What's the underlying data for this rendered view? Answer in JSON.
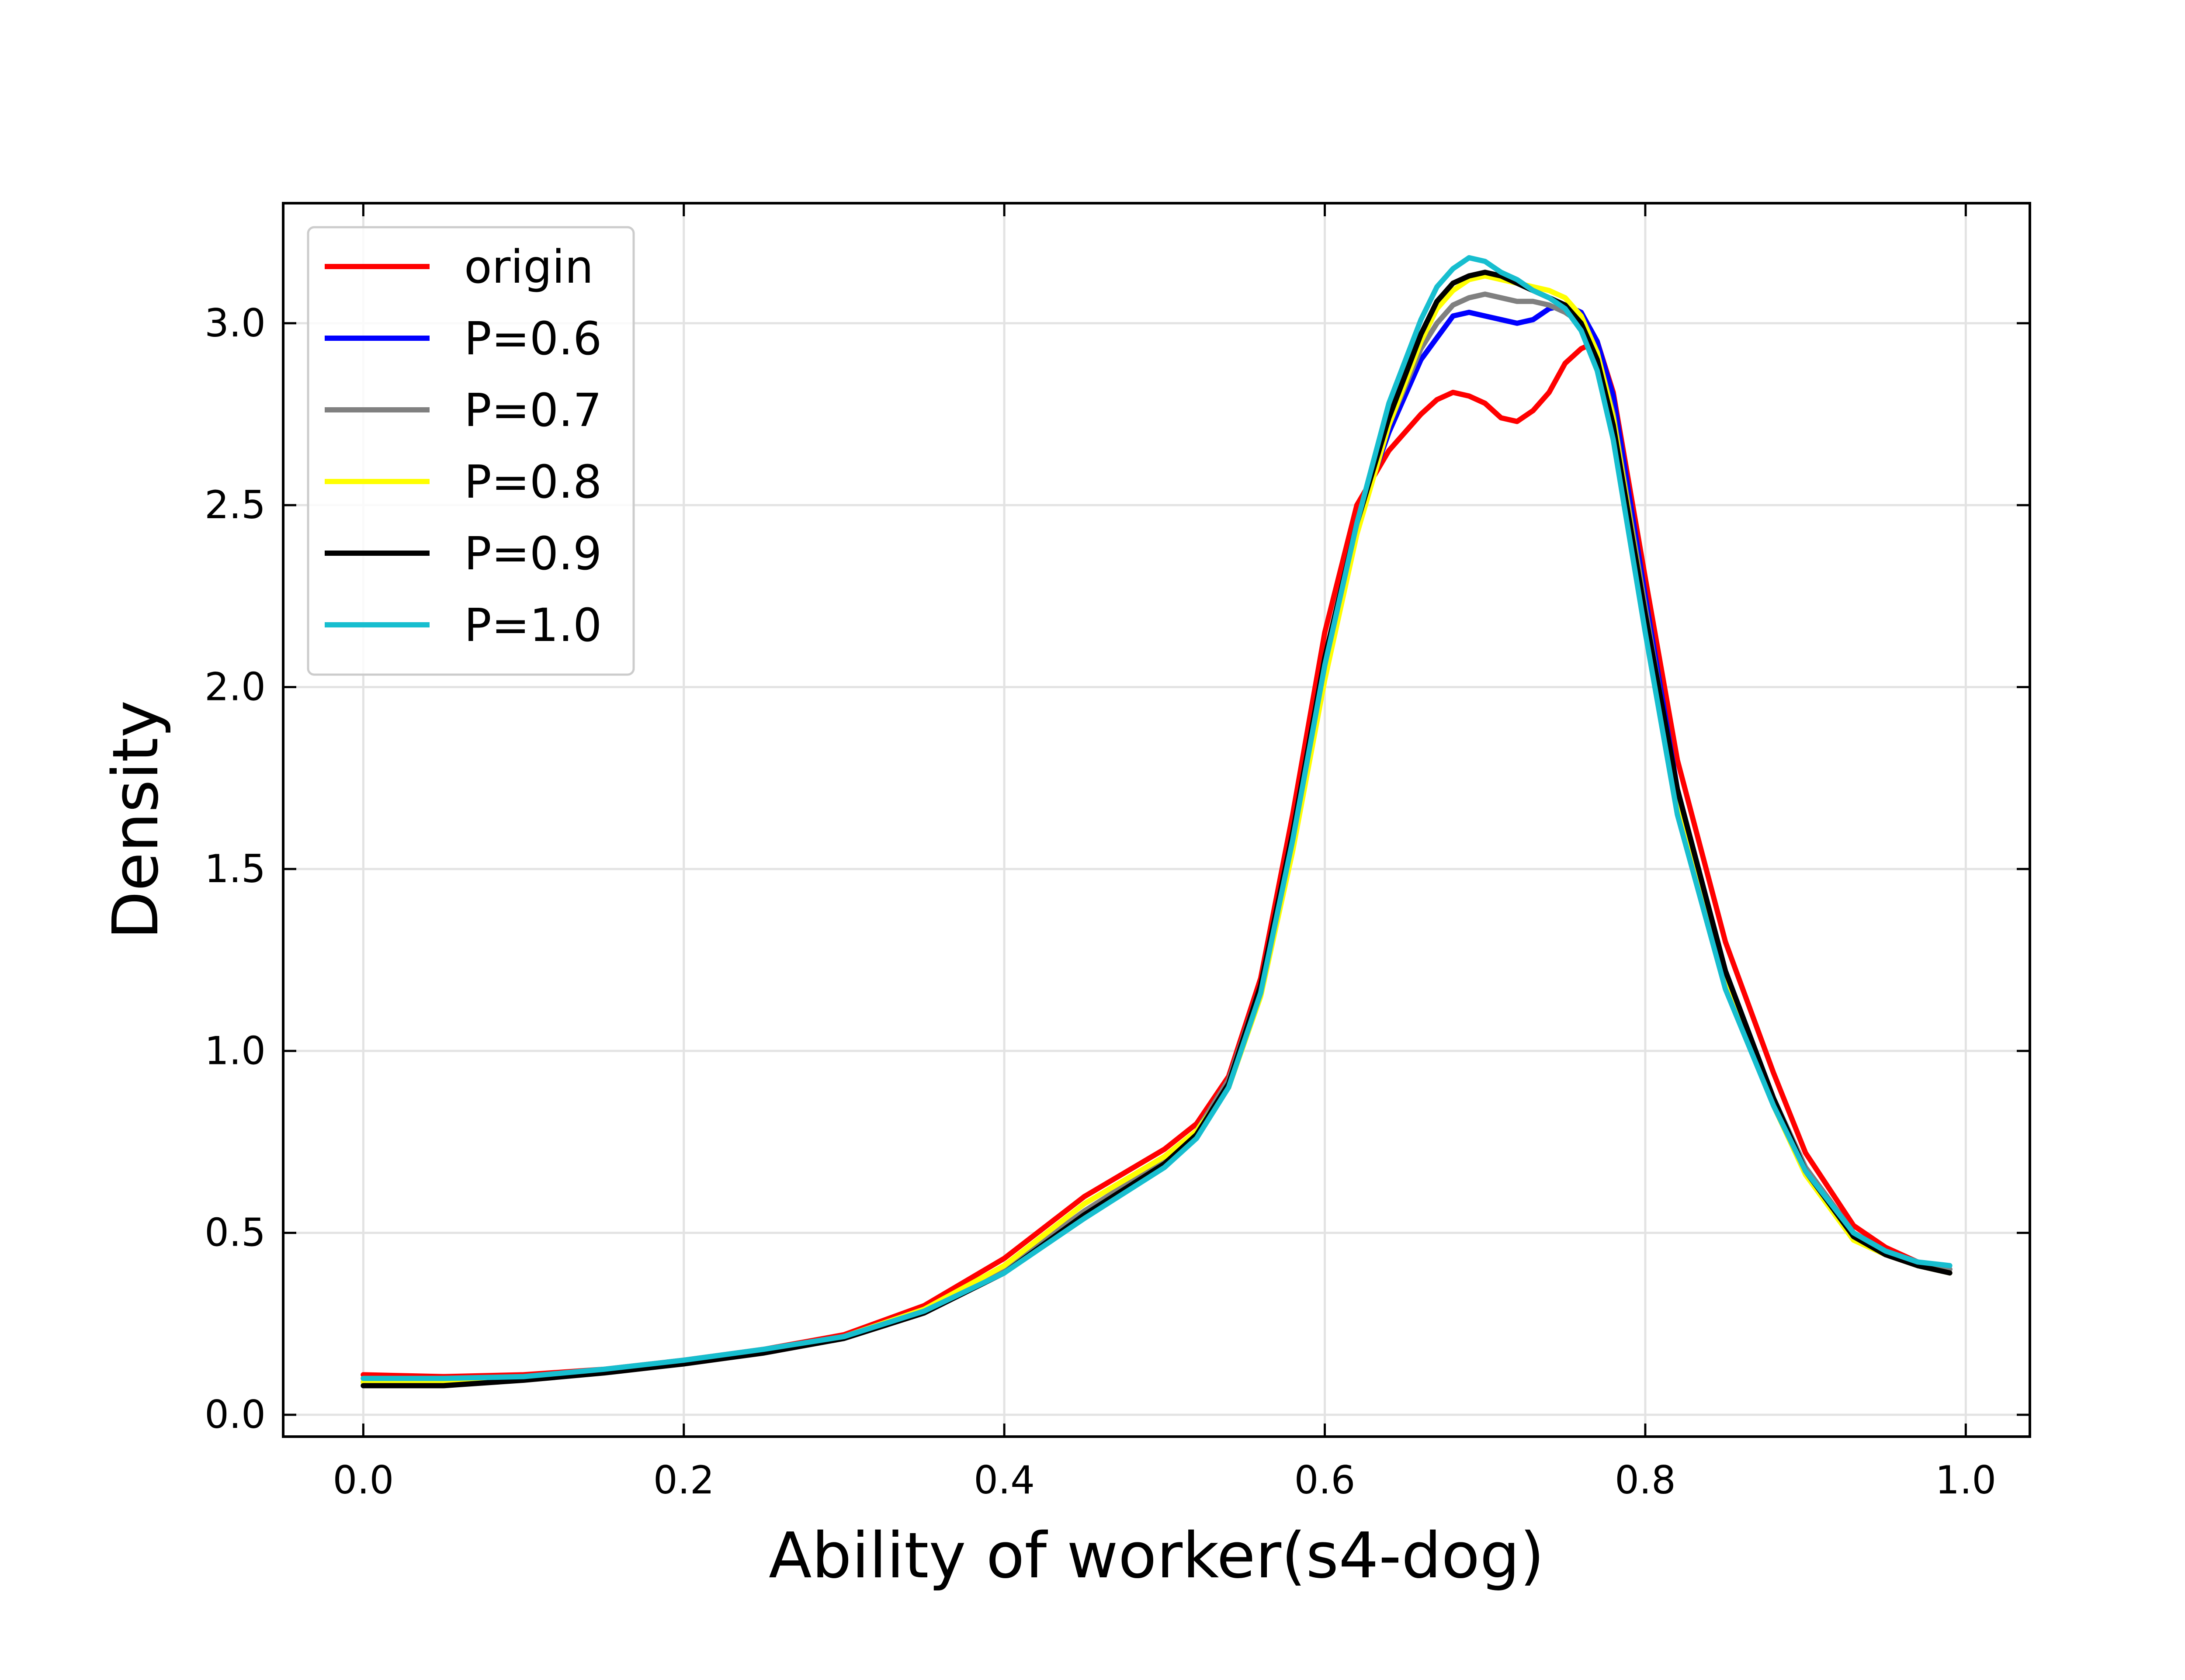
{
  "chart_data": {
    "type": "line",
    "title": "",
    "xlabel": "Ability of worker(s4-dog)",
    "ylabel": "Density",
    "xlim": [
      -0.05,
      1.04
    ],
    "ylim": [
      -0.06,
      3.33
    ],
    "xticks": [
      0.0,
      0.2,
      0.4,
      0.6,
      0.8,
      1.0
    ],
    "xtick_labels": [
      "0.0",
      "0.2",
      "0.4",
      "0.6",
      "0.8",
      "1.0"
    ],
    "yticks": [
      0.0,
      0.5,
      1.0,
      1.5,
      2.0,
      2.5,
      3.0
    ],
    "ytick_labels": [
      "0.0",
      "0.5",
      "1.0",
      "1.5",
      "2.0",
      "2.5",
      "3.0"
    ],
    "grid": true,
    "legend_position": "upper-left",
    "x": [
      0.0,
      0.05,
      0.1,
      0.15,
      0.2,
      0.25,
      0.3,
      0.35,
      0.4,
      0.45,
      0.5,
      0.52,
      0.54,
      0.56,
      0.58,
      0.6,
      0.62,
      0.64,
      0.66,
      0.67,
      0.68,
      0.69,
      0.7,
      0.71,
      0.72,
      0.73,
      0.74,
      0.75,
      0.76,
      0.77,
      0.78,
      0.8,
      0.82,
      0.85,
      0.88,
      0.9,
      0.93,
      0.95,
      0.97,
      0.99
    ],
    "series": [
      {
        "name": "origin",
        "color": "#ff0000",
        "values": [
          0.11,
          0.105,
          0.11,
          0.125,
          0.15,
          0.18,
          0.22,
          0.3,
          0.43,
          0.6,
          0.73,
          0.8,
          0.93,
          1.2,
          1.65,
          2.15,
          2.5,
          2.65,
          2.75,
          2.79,
          2.81,
          2.8,
          2.78,
          2.74,
          2.73,
          2.76,
          2.81,
          2.89,
          2.93,
          2.95,
          2.81,
          2.3,
          1.8,
          1.3,
          0.94,
          0.72,
          0.52,
          0.46,
          0.42,
          0.4
        ]
      },
      {
        "name": "P=0.6",
        "color": "#0000ff",
        "values": [
          0.09,
          0.09,
          0.1,
          0.12,
          0.145,
          0.175,
          0.215,
          0.29,
          0.4,
          0.56,
          0.7,
          0.78,
          0.92,
          1.18,
          1.6,
          2.08,
          2.45,
          2.7,
          2.9,
          2.96,
          3.02,
          3.03,
          3.02,
          3.01,
          3.0,
          3.01,
          3.04,
          3.05,
          3.03,
          2.95,
          2.8,
          2.25,
          1.72,
          1.22,
          0.87,
          0.68,
          0.5,
          0.45,
          0.42,
          0.4
        ]
      },
      {
        "name": "P=0.7",
        "color": "#808080",
        "values": [
          0.09,
          0.09,
          0.1,
          0.12,
          0.145,
          0.175,
          0.215,
          0.29,
          0.4,
          0.56,
          0.7,
          0.78,
          0.92,
          1.18,
          1.6,
          2.08,
          2.45,
          2.72,
          2.93,
          3.0,
          3.05,
          3.07,
          3.08,
          3.07,
          3.06,
          3.06,
          3.05,
          3.03,
          3.0,
          2.92,
          2.75,
          2.22,
          1.7,
          1.21,
          0.87,
          0.68,
          0.5,
          0.45,
          0.42,
          0.4
        ]
      },
      {
        "name": "P=0.8",
        "color": "#ffff00",
        "values": [
          0.09,
          0.09,
          0.1,
          0.12,
          0.145,
          0.175,
          0.215,
          0.29,
          0.41,
          0.58,
          0.71,
          0.78,
          0.9,
          1.15,
          1.55,
          2.02,
          2.42,
          2.72,
          2.95,
          3.04,
          3.09,
          3.12,
          3.13,
          3.12,
          3.11,
          3.1,
          3.09,
          3.07,
          3.02,
          2.92,
          2.74,
          2.2,
          1.68,
          1.19,
          0.85,
          0.66,
          0.48,
          0.44,
          0.41,
          0.39
        ]
      },
      {
        "name": "P=0.9",
        "color": "#000000",
        "values": [
          0.08,
          0.08,
          0.095,
          0.115,
          0.14,
          0.17,
          0.21,
          0.28,
          0.39,
          0.55,
          0.69,
          0.77,
          0.91,
          1.18,
          1.6,
          2.08,
          2.45,
          2.74,
          2.97,
          3.06,
          3.11,
          3.13,
          3.14,
          3.13,
          3.11,
          3.09,
          3.07,
          3.05,
          3.0,
          2.9,
          2.72,
          2.2,
          1.72,
          1.22,
          0.87,
          0.67,
          0.49,
          0.44,
          0.41,
          0.39
        ]
      },
      {
        "name": "P=1.0",
        "color": "#17becf",
        "values": [
          0.1,
          0.1,
          0.105,
          0.125,
          0.15,
          0.18,
          0.215,
          0.285,
          0.39,
          0.54,
          0.68,
          0.76,
          0.9,
          1.16,
          1.58,
          2.06,
          2.45,
          2.78,
          3.01,
          3.1,
          3.15,
          3.18,
          3.17,
          3.14,
          3.12,
          3.09,
          3.07,
          3.04,
          2.98,
          2.87,
          2.68,
          2.15,
          1.65,
          1.17,
          0.85,
          0.67,
          0.5,
          0.45,
          0.42,
          0.41
        ]
      }
    ]
  }
}
